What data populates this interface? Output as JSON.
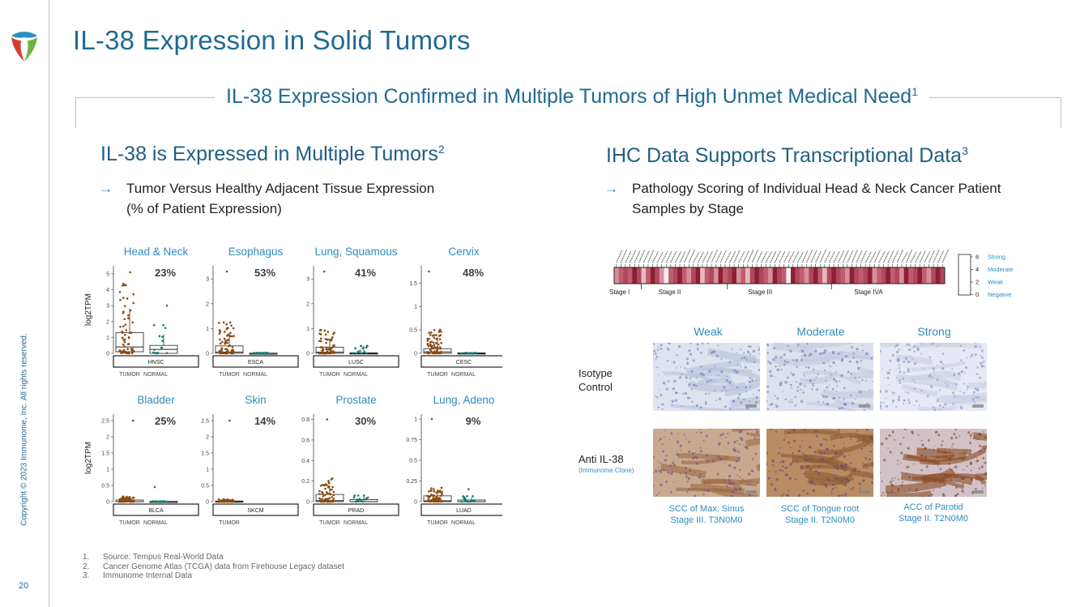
{
  "page": {
    "title": "IL-38 Expression in Solid Tumors",
    "banner": "IL-38 Expression Confirmed in Multiple Tumors of High Unmet Medical Need",
    "banner_sup": "1",
    "copyright": "Copyright © 2023 Immunome, Inc. All rights reserved.",
    "page_number": "20",
    "colors": {
      "brand_blue": "#1f6a93",
      "accent_blue": "#2f8bbf",
      "tumor": "#8a4b0f",
      "normal": "#0e7a73"
    }
  },
  "left": {
    "heading": "IL-38 is Expressed in Multiple Tumors",
    "heading_sup": "2",
    "bullet_line1": "Tumor Versus Healthy Adjacent Tissue Expression",
    "bullet_line2": "(% of Patient Expression)"
  },
  "right": {
    "heading": "IHC Data Supports Transcriptional Data",
    "heading_sup": "3",
    "bullet_line1": "Pathology Scoring of Individual Head & Neck Cancer Patient",
    "bullet_line2": "Samples by Stage",
    "columns": [
      "Weak",
      "Moderate",
      "Strong"
    ],
    "row1_line1": "Isotype",
    "row1_line2": "Control",
    "row2_line1": "Anti IL-38",
    "row2_sub": "(Immunome Clone)",
    "captions": [
      {
        "line1": "SCC of Max. Sinus",
        "line2": "Stage III. T3N0M0"
      },
      {
        "line1": "SCC of Tongue root",
        "line2": "Stage II. T2N0M0"
      },
      {
        "line1": "ACC of Parotid",
        "line2": "Stage II. T2N0M0"
      }
    ]
  },
  "footnotes": [
    {
      "n": "1.",
      "text": "Source: Tempus Real-World Data"
    },
    {
      "n": "2.",
      "text": "Cancer Genome Atlas (TCGA) data from Firehouse Legacy dataset"
    },
    {
      "n": "3.",
      "text": "Immunome Internal Data"
    }
  ],
  "chart_data": [
    {
      "type": "boxplot",
      "ylabel": "log2TPM",
      "legend": "none",
      "panels": [
        {
          "title": "Head & Neck",
          "code": "HNSC",
          "percent": "23%",
          "ylim": [
            0,
            5.3
          ],
          "yticks": [
            0,
            1,
            2,
            3,
            4,
            5
          ],
          "groups": [
            "TUMOR",
            "NORMAL"
          ],
          "tumor": {
            "q1": 0.1,
            "median": 0.4,
            "q3": 1.3,
            "whisker_high": 2.8,
            "max": 5.1
          },
          "normal": {
            "q1": 0.0,
            "median": 0.25,
            "q3": 0.5,
            "whisker_high": 1.2,
            "max": 3.0
          }
        },
        {
          "title": "Esophagus",
          "code": "ESCA",
          "percent": "53%",
          "ylim": [
            0,
            3.4
          ],
          "yticks": [
            0,
            1,
            2,
            3
          ],
          "groups": [
            "TUMOR",
            "NORMAL"
          ],
          "tumor": {
            "q1": 0.0,
            "median": 0.05,
            "q3": 0.3,
            "whisker_high": 0.8,
            "max": 3.3
          },
          "normal": {
            "q1": 0.0,
            "median": 0.0,
            "q3": 0.01,
            "whisker_high": 0.02,
            "max": 0.02
          }
        },
        {
          "title": "Lung, Squamous",
          "code": "LUSC",
          "percent": "41%",
          "ylim": [
            0,
            3.4
          ],
          "yticks": [
            0,
            1,
            2,
            3
          ],
          "groups": [
            "TUMOR",
            "NORMAL"
          ],
          "tumor": {
            "q1": 0.0,
            "median": 0.05,
            "q3": 0.25,
            "whisker_high": 0.6,
            "max": 3.3
          },
          "normal": {
            "q1": 0.0,
            "median": 0.0,
            "q3": 0.02,
            "whisker_high": 0.3,
            "max": 0.3
          }
        },
        {
          "title": "Cervix",
          "code": "CESC",
          "percent": "48%",
          "ylim": [
            0,
            1.8
          ],
          "yticks": [
            0,
            0.5,
            1.0,
            1.5
          ],
          "groups": [
            "TUMOR",
            "NORMAL"
          ],
          "tumor": {
            "q1": 0.0,
            "median": 0.03,
            "q3": 0.1,
            "whisker_high": 0.35,
            "max": 1.75
          },
          "normal": {
            "q1": 0.0,
            "median": 0.0,
            "q3": 0.01,
            "whisker_high": 0.01,
            "max": 0.01
          }
        },
        {
          "title": "Bladder",
          "code": "BLCA",
          "percent": "25%",
          "ylim": [
            0,
            2.6
          ],
          "yticks": [
            0,
            0.5,
            1.0,
            1.5,
            2.0,
            2.5
          ],
          "groups": [
            "TUMOR",
            "NORMAL"
          ],
          "tumor": {
            "q1": 0.0,
            "median": 0.0,
            "q3": 0.05,
            "whisker_high": 0.1,
            "max": 2.5
          },
          "normal": {
            "q1": 0.0,
            "median": 0.0,
            "q3": 0.01,
            "whisker_high": 0.01,
            "max": 0.45
          }
        },
        {
          "title": "Skin",
          "code": "SKCM",
          "percent": "14%",
          "ylim": [
            0,
            2.6
          ],
          "yticks": [
            0,
            0.5,
            1.0,
            1.5,
            2.0,
            2.5
          ],
          "groups": [
            "TUMOR"
          ],
          "tumor": {
            "q1": 0.0,
            "median": 0.0,
            "q3": 0.02,
            "whisker_high": 0.05,
            "max": 2.5
          }
        },
        {
          "title": "Prostate",
          "code": "PRAD",
          "percent": "30%",
          "ylim": [
            0,
            0.82
          ],
          "yticks": [
            0,
            0.2,
            0.4,
            0.6,
            0.8
          ],
          "groups": [
            "TUMOR",
            "NORMAL"
          ],
          "tumor": {
            "q1": 0.0,
            "median": 0.01,
            "q3": 0.07,
            "whisker_high": 0.15,
            "max": 0.8
          },
          "normal": {
            "q1": 0.0,
            "median": 0.0,
            "q3": 0.02,
            "whisker_high": 0.05,
            "max": 0.06
          }
        },
        {
          "title": "Lung, Adeno",
          "code": "LUAD",
          "percent": "9%",
          "ylim": [
            0,
            1.02
          ],
          "yticks": [
            0,
            0.25,
            0.5,
            0.75,
            1.0
          ],
          "groups": [
            "TUMOR",
            "NORMAL"
          ],
          "tumor": {
            "q1": 0.0,
            "median": 0.01,
            "q3": 0.07,
            "whisker_high": 0.12,
            "max": 1.0
          },
          "normal": {
            "q1": 0.0,
            "median": 0.0,
            "q3": 0.02,
            "whisker_high": 0.05,
            "max": 0.15
          }
        }
      ]
    },
    {
      "type": "heatmap",
      "stages": [
        {
          "label": "Stage I",
          "count": 6
        },
        {
          "label": "Stage II",
          "count": 19
        },
        {
          "label": "Stage III",
          "count": 23
        },
        {
          "label": "Stage IVA",
          "count": 25
        }
      ],
      "scale": {
        "ticks": [
          "6",
          "4",
          "2",
          "0"
        ],
        "labels": [
          "Strong",
          "Moderate",
          "Weak",
          "Negative"
        ],
        "colors": [
          "#8e1f32",
          "#c25d6d",
          "#e6b9c0",
          "#f7eef0"
        ]
      },
      "scores": [
        3,
        4,
        5,
        4,
        6,
        5,
        2,
        4,
        6,
        5,
        3,
        1,
        4,
        5,
        6,
        4,
        3,
        5,
        6,
        2,
        4,
        5,
        3,
        6,
        4,
        5,
        6,
        3,
        4,
        2,
        5,
        6,
        5,
        4,
        3,
        6,
        5,
        4,
        1,
        6,
        5,
        4,
        3,
        5,
        6,
        4,
        2,
        5,
        6,
        5,
        4,
        3,
        6,
        5,
        4,
        5,
        6,
        3,
        4,
        5,
        6,
        4,
        5,
        3,
        6,
        4,
        5,
        6,
        4,
        3,
        5,
        6,
        5
      ]
    }
  ]
}
